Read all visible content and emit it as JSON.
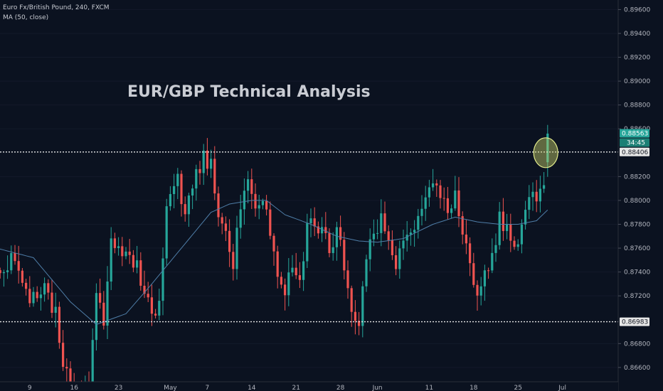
{
  "legend": {
    "symbol_line": "Euro Fx/British Pound, 240, FXCM",
    "indicator_line": "MA (50, close)"
  },
  "title": "EUR/GBP Technical Analysis",
  "colors": {
    "background": "#0b1220",
    "bull": "#26a69a",
    "bear": "#ef5350",
    "ma": "#4f7ea8",
    "axis_text": "#b2b5be",
    "dotted_line": "#e6e6e6",
    "price_tag_bg": "#26a69a",
    "ellipse_fill": "#c8d36a",
    "ellipse_stroke": "#e3ec8c"
  },
  "price_tags": {
    "current_price": "0.88563",
    "countdown": "34:45",
    "resistance": "0.88406",
    "support": "0.86983"
  },
  "chart_data": {
    "type": "candlestick",
    "title": "EUR/GBP Technical Analysis",
    "ylim": [
      0.8648,
      0.8968
    ],
    "y_ticks": [
      "0.89600",
      "0.89400",
      "0.89200",
      "0.89000",
      "0.88800",
      "0.88600",
      "0.88200",
      "0.88000",
      "0.87800",
      "0.87600",
      "0.87400",
      "0.87200",
      "0.86800",
      "0.86600"
    ],
    "x_ticks": [
      {
        "label": "9",
        "bar": 9
      },
      {
        "label": "16",
        "bar": 21
      },
      {
        "label": "23",
        "bar": 33
      },
      {
        "label": "May",
        "bar": 47
      },
      {
        "label": "7",
        "bar": 57
      },
      {
        "label": "14",
        "bar": 69
      },
      {
        "label": "21",
        "bar": 81
      },
      {
        "label": "28",
        "bar": 93
      },
      {
        "label": "Jun",
        "bar": 103
      },
      {
        "label": "11",
        "bar": 117
      },
      {
        "label": "18",
        "bar": 129
      },
      {
        "label": "25",
        "bar": 141
      },
      {
        "label": "Jul",
        "bar": 153
      }
    ],
    "horizontal_lines": [
      {
        "name": "resistance",
        "value": 0.88406
      },
      {
        "name": "support",
        "value": 0.86983
      }
    ],
    "moving_average": {
      "name": "MA (50, close)",
      "anchors": [
        [
          0,
          0.876
        ],
        [
          10,
          0.8752
        ],
        [
          20,
          0.8715
        ],
        [
          27,
          0.8696
        ],
        [
          35,
          0.8705
        ],
        [
          42,
          0.873
        ],
        [
          50,
          0.876
        ],
        [
          58,
          0.879
        ],
        [
          63,
          0.8797
        ],
        [
          69,
          0.88
        ],
        [
          73,
          0.88
        ],
        [
          78,
          0.8788
        ],
        [
          85,
          0.878
        ],
        [
          92,
          0.877
        ],
        [
          98,
          0.8766
        ],
        [
          103,
          0.8765
        ],
        [
          110,
          0.8768
        ],
        [
          118,
          0.878
        ],
        [
          124,
          0.8786
        ],
        [
          130,
          0.8782
        ],
        [
          136,
          0.878
        ],
        [
          141,
          0.878
        ],
        [
          146,
          0.8783
        ],
        [
          149,
          0.8792
        ]
      ]
    },
    "close_anchors": [
      [
        0,
        0.8745
      ],
      [
        5,
        0.875
      ],
      [
        9,
        0.872
      ],
      [
        13,
        0.873
      ],
      [
        16,
        0.8705
      ],
      [
        18,
        0.866
      ],
      [
        20,
        0.8645
      ],
      [
        22,
        0.864
      ],
      [
        25,
        0.865
      ],
      [
        27,
        0.872
      ],
      [
        29,
        0.87
      ],
      [
        31,
        0.877
      ],
      [
        34,
        0.8755
      ],
      [
        38,
        0.8745
      ],
      [
        42,
        0.87
      ],
      [
        44,
        0.871
      ],
      [
        46,
        0.88
      ],
      [
        49,
        0.882
      ],
      [
        51,
        0.8785
      ],
      [
        53,
        0.881
      ],
      [
        56,
        0.8835
      ],
      [
        58,
        0.883
      ],
      [
        60,
        0.879
      ],
      [
        62,
        0.877
      ],
      [
        64,
        0.8745
      ],
      [
        66,
        0.88
      ],
      [
        68,
        0.8815
      ],
      [
        70,
        0.88
      ],
      [
        72,
        0.8805
      ],
      [
        74,
        0.8775
      ],
      [
        76,
        0.874
      ],
      [
        78,
        0.872
      ],
      [
        80,
        0.8745
      ],
      [
        82,
        0.8735
      ],
      [
        84,
        0.8775
      ],
      [
        86,
        0.878
      ],
      [
        88,
        0.877
      ],
      [
        90,
        0.876
      ],
      [
        92,
        0.8775
      ],
      [
        94,
        0.8745
      ],
      [
        96,
        0.8705
      ],
      [
        98,
        0.87
      ],
      [
        100,
        0.8755
      ],
      [
        102,
        0.8775
      ],
      [
        104,
        0.8785
      ],
      [
        106,
        0.876
      ],
      [
        108,
        0.874
      ],
      [
        110,
        0.8765
      ],
      [
        112,
        0.8775
      ],
      [
        114,
        0.879
      ],
      [
        116,
        0.8805
      ],
      [
        118,
        0.881
      ],
      [
        120,
        0.8805
      ],
      [
        122,
        0.879
      ],
      [
        124,
        0.8805
      ],
      [
        126,
        0.8775
      ],
      [
        128,
        0.8745
      ],
      [
        130,
        0.8725
      ],
      [
        132,
        0.874
      ],
      [
        134,
        0.8755
      ],
      [
        136,
        0.8785
      ],
      [
        138,
        0.8775
      ],
      [
        140,
        0.876
      ],
      [
        142,
        0.8775
      ],
      [
        144,
        0.88
      ],
      [
        146,
        0.8805
      ],
      [
        148,
        0.882
      ],
      [
        149,
        0.8856
      ]
    ],
    "ellipse_marker": {
      "bar": 148.5,
      "value": 0.884
    }
  }
}
